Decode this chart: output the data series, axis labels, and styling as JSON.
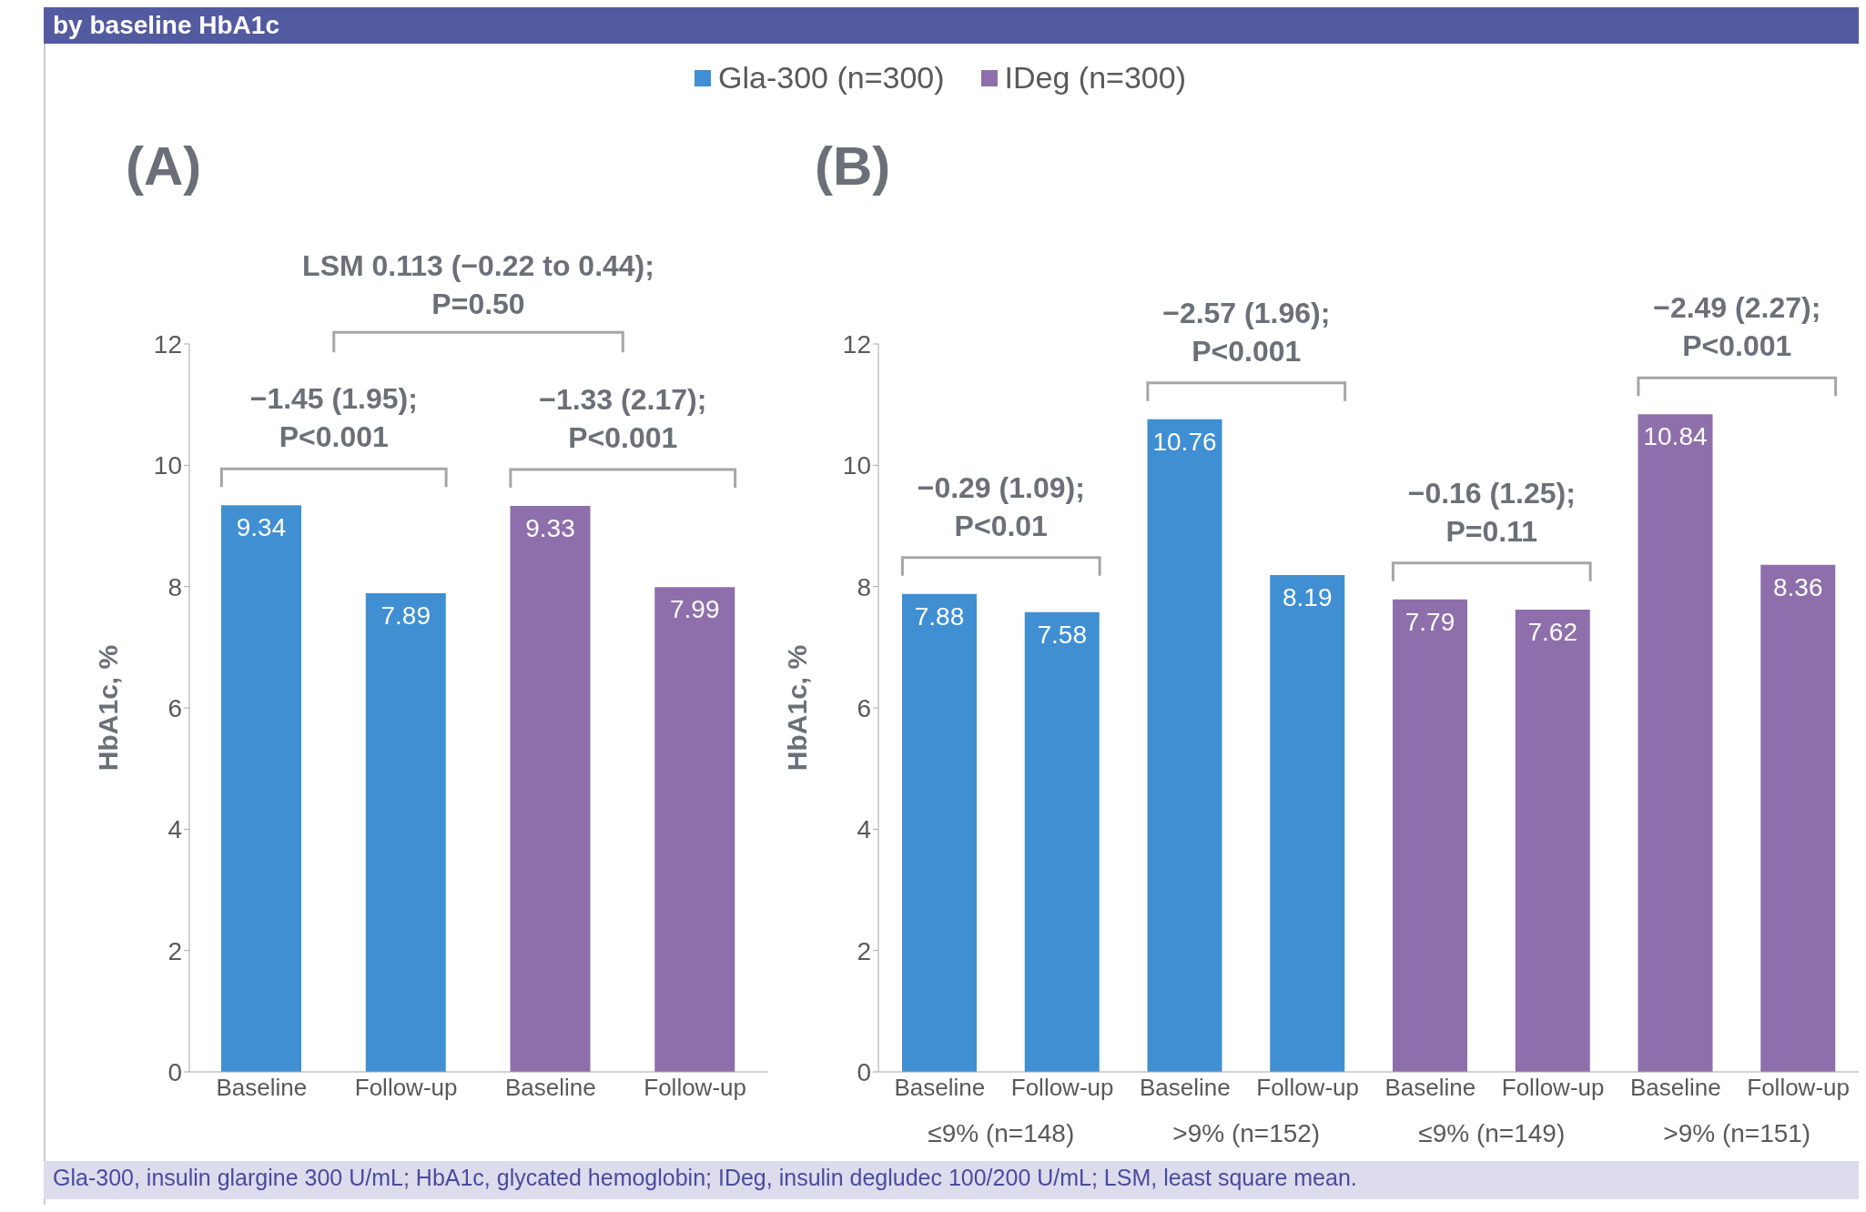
{
  "chart_data": [
    {
      "type": "bar",
      "title": "(A)",
      "ylabel": "HbA1c, %",
      "categories": [
        "Baseline",
        "Follow-up",
        "Baseline",
        "Follow-up"
      ],
      "series": [
        {
          "name": "Gla-300 (n=300)",
          "color": "#3f8fd2",
          "values": [
            9.34,
            7.89,
            null,
            null
          ]
        },
        {
          "name": "IDeg (n=300)",
          "color": "#8e6fab",
          "values": [
            null,
            null,
            9.33,
            7.99
          ]
        }
      ],
      "stacked": true,
      "ylim": [
        0,
        12
      ],
      "yticks": [
        0,
        2,
        4,
        6,
        8,
        10,
        12
      ],
      "legend": "top",
      "data_labels": true,
      "annotations": [
        "by baseline HbA1c",
        "−1.45 (1.95);\nP<0.001",
        "−1.33 (2.17);\nP<0.001",
        "LSM 0.113 (−0.22 to 0.44);\nP=0.50"
      ]
    },
    {
      "type": "bar",
      "title": "(B)",
      "ylabel": "HbA1c, %",
      "categories": [
        "Baseline",
        "Follow-up",
        "Baseline",
        "Follow-up",
        "Baseline",
        "Follow-up",
        "Baseline",
        "Follow-up"
      ],
      "series": [
        {
          "color": "#3f8fd2",
          "values": [
            7.88,
            7.58,
            10.76,
            8.19,
            null,
            null,
            null,
            null
          ]
        },
        {
          "color": "#8e6fab",
          "values": [
            null,
            null,
            null,
            null,
            7.79,
            7.62,
            10.84,
            8.36
          ]
        }
      ],
      "stacked": true,
      "ylim": [
        0,
        12
      ],
      "yticks": [
        0,
        2,
        4,
        6,
        8,
        10,
        12
      ],
      "data_labels": true,
      "annotations": [
        "−0.29 (1.09);\nP<0.01",
        "−2.57 (1.96);\nP<0.001",
        "−0.16 (1.25);\nP=0.11",
        "−2.49 (2.27);\nP<0.001",
        "≤9% (n=148)",
        ">9% (n=152)",
        "≤9% (n=149)",
        ">9% (n=151)",
        "Gla-300, insulin glargine 300 U/mL; HbA1c, glycated hemoglobin; IDeg, insulin degludec 100/200 U/mL; LSM, least square mean."
      ]
    }
  ]
}
